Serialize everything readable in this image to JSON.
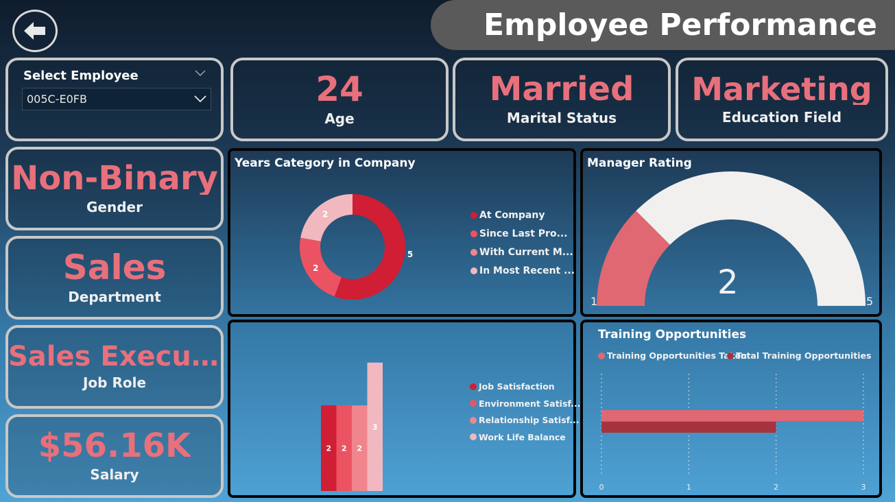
{
  "header": {
    "title": "Employee Performance",
    "back_icon": "back-arrow-icon"
  },
  "slicer": {
    "title": "Select Employee",
    "value": "005C-E0FB"
  },
  "kpis": {
    "age": {
      "value": "24",
      "label": "Age"
    },
    "marital": {
      "value": "Married",
      "label": "Marital Status"
    },
    "education": {
      "value": "Marketing",
      "label": "Education Field"
    },
    "gender": {
      "value": "Non-Binary",
      "label": "Gender"
    },
    "department": {
      "value": "Sales",
      "label": "Department"
    },
    "job_role": {
      "value": "Sales Executi...",
      "label": "Job Role"
    },
    "salary": {
      "value": "$56.16K",
      "label": "Salary"
    }
  },
  "colors": {
    "accent": "#e8707c",
    "c1": "#d01e34",
    "c2": "#ec5362",
    "c3": "#f0858e",
    "c4": "#f2b8bf",
    "gauge_bg": "#f2f0ef",
    "gauge_fill": "#e06872",
    "bar_dark": "#a5343e"
  },
  "years_chart": {
    "title": "Years Category in Company",
    "legend": [
      "At Company",
      "Since Last Pro...",
      "With Current M...",
      "In Most Recent ..."
    ]
  },
  "satisfaction_chart": {
    "legend": [
      "Job Satisfaction",
      "Environment Satisf...",
      "Relationship Satisf...",
      "Work Life Balance"
    ]
  },
  "manager_rating": {
    "title": "Manager Rating",
    "value": "2",
    "min": "1",
    "max": "5"
  },
  "training": {
    "title": "Training Opportunities",
    "legend": [
      "Training Opportunities Taken",
      "Total Training Opportunities"
    ],
    "ticks": [
      "0",
      "1",
      "2",
      "3"
    ]
  },
  "chart_data": [
    {
      "type": "pie",
      "title": "Years Category in Company",
      "categories": [
        "At Company",
        "Since Last Pro...",
        "With Current M...",
        "In Most Recent ..."
      ],
      "values": [
        5,
        2,
        0,
        2
      ],
      "labels": [
        "5",
        "2",
        "",
        "2"
      ]
    },
    {
      "type": "bar",
      "categories": [
        "Job Satisfaction",
        "Environment Satisf...",
        "Relationship Satisf...",
        "Work Life Balance"
      ],
      "values": [
        2,
        2,
        2,
        3
      ],
      "labels": [
        "2",
        "2",
        "2",
        "3"
      ],
      "ylim": [
        0,
        3.3
      ]
    },
    {
      "type": "bar",
      "orientation": "horizontal",
      "title": "Training Opportunities",
      "series": [
        {
          "name": "Training Opportunities Taken",
          "values": [
            3
          ]
        },
        {
          "name": "Total Training Opportunities",
          "values": [
            2
          ]
        }
      ],
      "xlim": [
        0,
        3
      ],
      "xticks": [
        0,
        1,
        2,
        3
      ]
    },
    {
      "type": "gauge",
      "title": "Manager Rating",
      "value": 2,
      "min": 1,
      "max": 5
    }
  ]
}
